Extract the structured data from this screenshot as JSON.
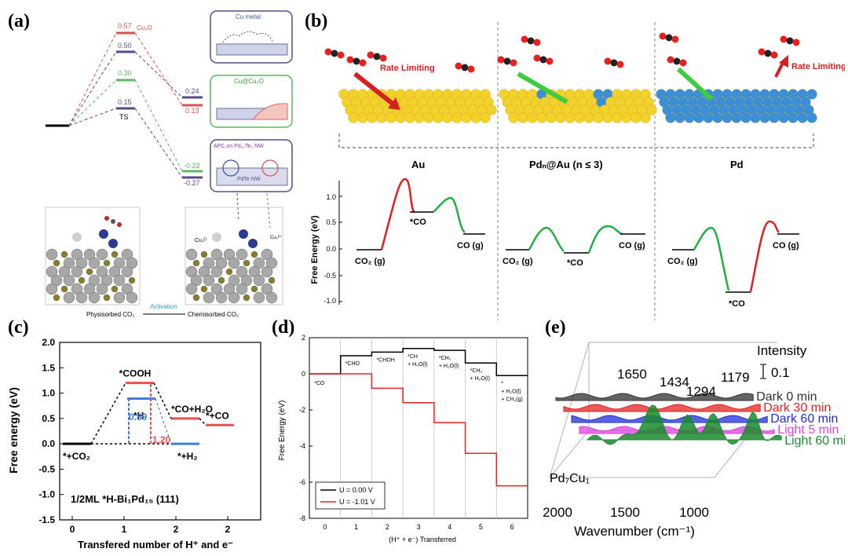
{
  "labels": {
    "a": "(a)",
    "b": "(b)",
    "c": "(c)",
    "d": "(d)",
    "e": "(e)"
  },
  "panel_a": {
    "levels": [
      {
        "value": "0.57",
        "color": "#d9534f",
        "name": "Cu₂O"
      },
      {
        "value": "0.50",
        "color": "#5b4a8b"
      },
      {
        "value": "0.30",
        "color": "#5cb85c"
      },
      {
        "value": "0.15",
        "color": "#5b4a8b"
      },
      {
        "value": "0.24",
        "color": "#5b4a8b"
      },
      {
        "value": "0.13",
        "color": "#d9534f"
      },
      {
        "value": "-0.22",
        "color": "#5cb85c"
      },
      {
        "value": "-0.27",
        "color": "#5b4a8b"
      }
    ],
    "ts_label": "TS",
    "box1_title": "Cu metal",
    "box2_title": "Cu@Cu₂O",
    "box3_title": "APC on Pd₁₀Te₃ NW",
    "box3_sub": "PdTe NW",
    "bottom_left": "Physisorbed CO₂",
    "bottom_mid": "Activation",
    "bottom_right": "Chemisorbed CO₂",
    "cu_label": "Cu₁ᴼ",
    "cu_label2": "Cu₁ᵟ⁺"
  },
  "panel_b": {
    "rate_limiting": "Rate Limiting",
    "section_au": "Au",
    "section_pdau": "Pdₙ@Au (n ≤ 3)",
    "section_pd": "Pd",
    "ylabel": "Free Energy (eV)",
    "yticks": [
      "1.0",
      "0.5",
      "0.0",
      "-0.5",
      "-1.0"
    ],
    "co2": "CO₂ (g)",
    "co": "CO (g)",
    "star_co": "*CO"
  },
  "chart_data": [
    {
      "id": "c",
      "type": "line",
      "ylabel": "Free energy (eV)",
      "xlabel": "Transfered number of H⁺ and e⁻",
      "ylim": [
        -1.5,
        2.0
      ],
      "yticks": [
        "2.0",
        "1.5",
        "1.0",
        "0.5",
        "0.0",
        "-0.5",
        "-1.0",
        "-1.5"
      ],
      "xticks": [
        "0",
        "1",
        "2",
        "2"
      ],
      "states": [
        {
          "label": "*+CO₂",
          "x": 0.0,
          "y": 0.0,
          "color": "#000000"
        },
        {
          "label": "*COOH",
          "x": 1.0,
          "y": 1.2,
          "color": "#e8504f"
        },
        {
          "label": "*H",
          "x": 1.0,
          "y": 0.89,
          "color": "#3b7dd8"
        },
        {
          "label": "*CO+H₂O",
          "x": 2.0,
          "y": 0.5,
          "color": "#e8504f"
        },
        {
          "label": "*+H₂",
          "x": 2.0,
          "y": 0.0,
          "color": "#3b7dd8"
        },
        {
          "label": "*+CO",
          "x": 3.0,
          "y": 0.37,
          "color": "#e8504f"
        }
      ],
      "annot_blue": "0.89",
      "annot_red": "1.20",
      "caption": "1/2ML *H-Bi₁Pd₁₅ (111)"
    },
    {
      "id": "d",
      "type": "line",
      "ylabel": "Free Energy (eV)",
      "xlabel": "(H⁺ + e⁻) Transferred",
      "ylim": [
        -8,
        2
      ],
      "yticks": [
        "2",
        "0",
        "-2",
        "-4",
        "-6",
        "-8"
      ],
      "xticks": [
        "0",
        "1",
        "2",
        "3",
        "4",
        "5",
        "6"
      ],
      "step_labels": [
        "*CO",
        "*CHO",
        "*CHOH",
        "*CH + H₂O(l)",
        "*CH₂ + H₂O(l)",
        "*CH₃ + H₂O(l)",
        "* + H₂O(l) + CH₄(g)"
      ],
      "series": [
        {
          "name": "U = 0.00 V",
          "color": "#000000",
          "values": [
            0.0,
            1.0,
            1.2,
            1.4,
            1.3,
            0.6,
            -0.1
          ]
        },
        {
          "name": "U = -1.01 V",
          "color": "#e8201e",
          "values": [
            0.0,
            0.0,
            -0.8,
            -1.6,
            -2.7,
            -4.4,
            -6.2
          ]
        }
      ]
    },
    {
      "id": "e",
      "type": "line",
      "xlabel": "Wavenumber (cm⁻¹)",
      "xticks": [
        "2000",
        "1500",
        "1000"
      ],
      "xlim": [
        2000,
        1000
      ],
      "intensity_label": "Intensity",
      "scale_label": "0.1",
      "peaks": [
        "1650",
        "1434",
        "1294",
        "1179"
      ],
      "sample": "Pd₇Cu₁",
      "series": [
        {
          "name": "Light 60 min",
          "color": "#1a8a2e"
        },
        {
          "name": "Light 5 min",
          "color": "#e040e0"
        },
        {
          "name": "Dark 60 min",
          "color": "#2030d0"
        },
        {
          "name": "Dark 30 min",
          "color": "#e82020"
        },
        {
          "name": "Dark 0 min",
          "color": "#303030"
        }
      ]
    }
  ]
}
